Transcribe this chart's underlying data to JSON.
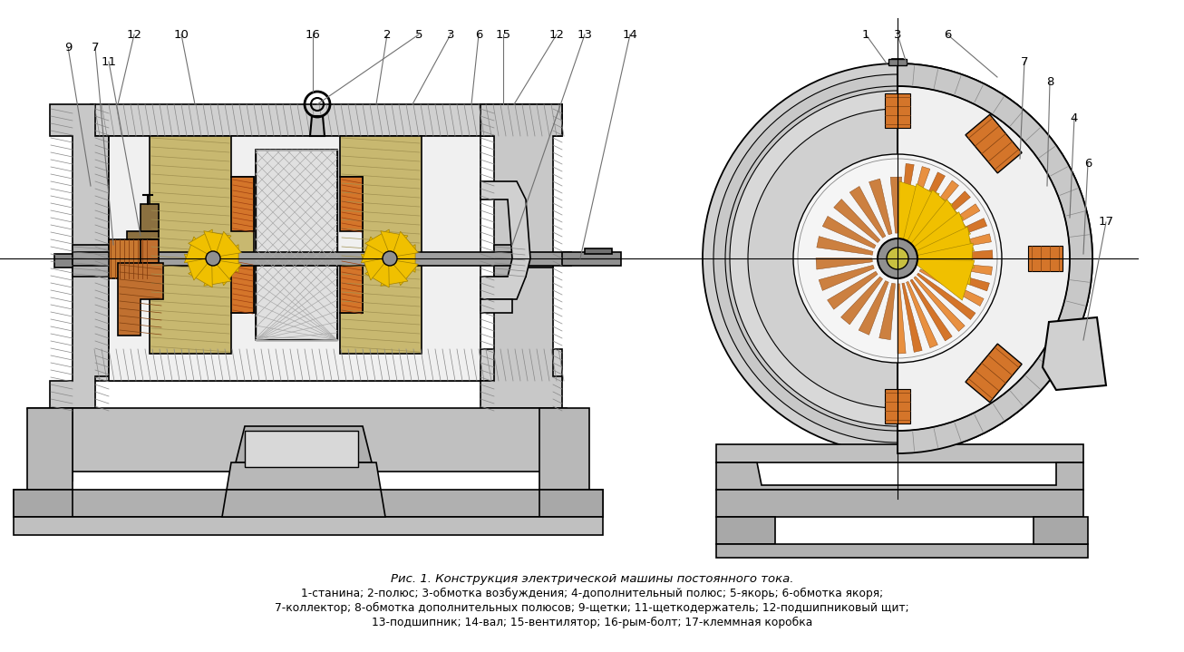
{
  "title": "Рис. 1. Конструкция электрической машины постоянного тока.",
  "caption_line2": "1-станина; 2-полюс; 3-обмотка возбуждения; 4-дополнительный полюс; 5-якорь; 6-обмотка якоря;",
  "caption_line3": "7-коллектор; 8-обмотка дополнительных полюсов; 9-щетки; 11-щеткодержатель; 12-подшипниковый щит;",
  "caption_line4": "13-подшипник; 14-вал; 15-вентилятор; 16-рым-болт; 17-клеммная коробка",
  "bg_color": "#ffffff",
  "lc": "#000000",
  "orange": "#d4752a",
  "yellow": "#f0c000",
  "gray1": "#c8c8c8",
  "gray2": "#b8b8b8",
  "gray3": "#d8d8d8",
  "gray4": "#a8a8a8",
  "gray5": "#e8e8e8",
  "dark_gray": "#888888",
  "shaft_gray": "#909090",
  "ann_c": "#707070"
}
